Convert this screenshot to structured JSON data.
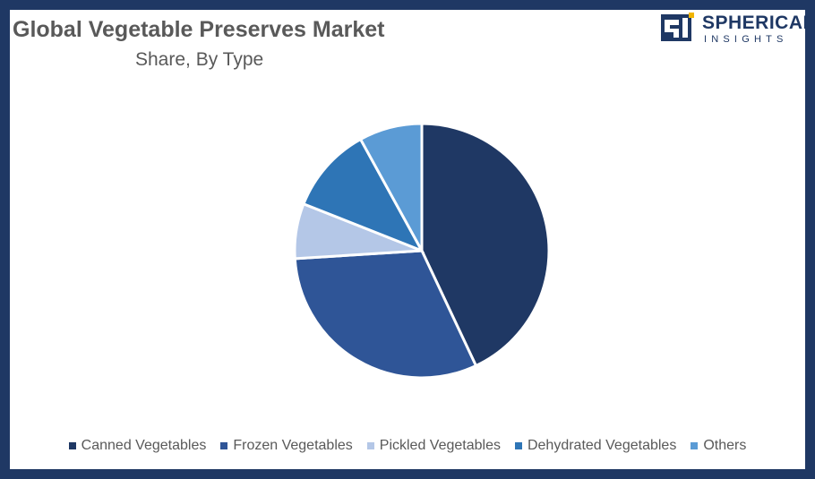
{
  "header": {
    "title": "Global Vegetable Preserves Market",
    "subtitle": "Share, By Type"
  },
  "logo": {
    "line1": "SPHERICAL",
    "line2": "INSIGHTS"
  },
  "colors": {
    "frame": "#1f3864",
    "text": "#595959"
  },
  "chart_data": {
    "type": "pie",
    "title": "Global Vegetable Preserves Market",
    "subtitle": "Share, By Type",
    "legend_position": "bottom",
    "slices": [
      {
        "name": "Canned Vegetables",
        "value": 43,
        "color": "#1f3864"
      },
      {
        "name": "Frozen Vegetables",
        "value": 31,
        "color": "#2f5597"
      },
      {
        "name": "Pickled Vegetables",
        "value": 7,
        "color": "#b4c7e7"
      },
      {
        "name": "Dehydrated Vegetables",
        "value": 11,
        "color": "#2e75b6"
      },
      {
        "name": "Others",
        "value": 8,
        "color": "#5b9bd5"
      }
    ]
  }
}
